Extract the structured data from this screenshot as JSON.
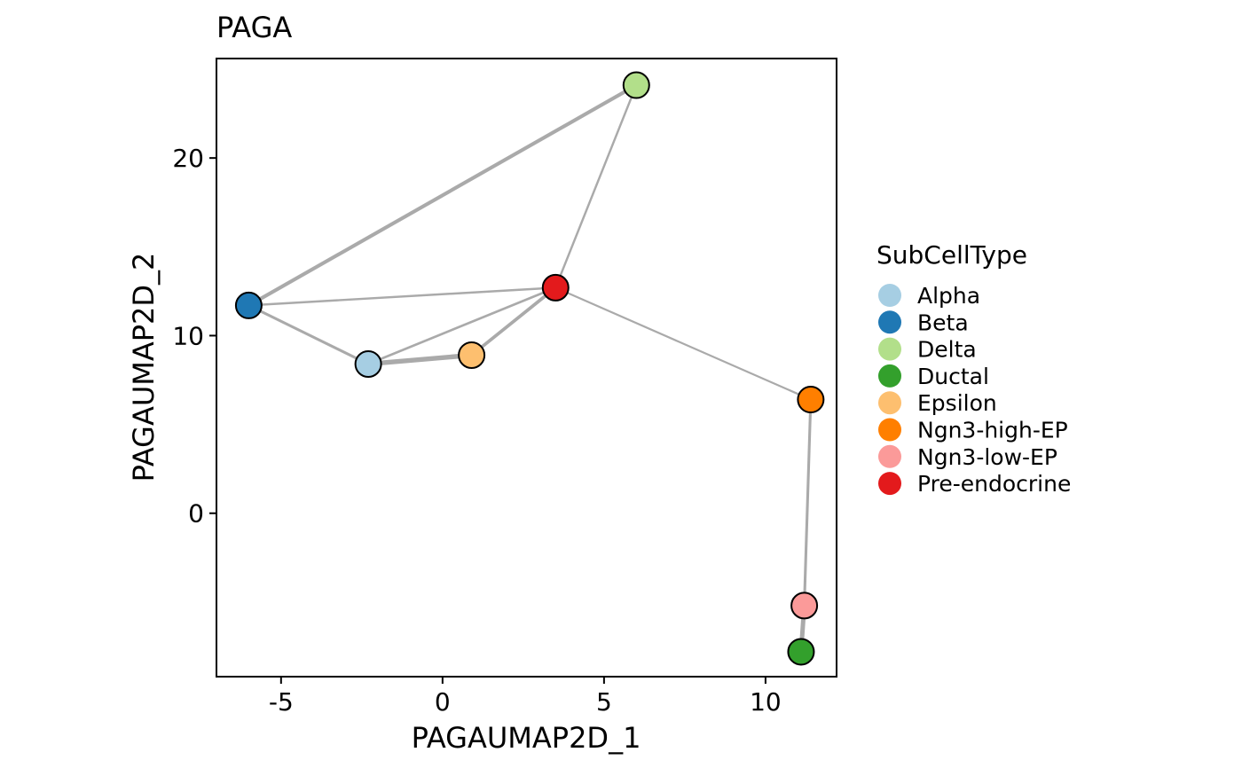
{
  "chart_data": {
    "type": "scatter",
    "title": "PAGA",
    "xlabel": "PAGAUMAP2D_1",
    "ylabel": "PAGAUMAP2D_2",
    "xlim": [
      -7.0,
      12.2
    ],
    "ylim": [
      -9.2,
      25.6
    ],
    "xticks": [
      -5,
      0,
      5,
      10
    ],
    "yticks": [
      0,
      10,
      20
    ],
    "xtick_labels": [
      "-5",
      "0",
      "5",
      "10"
    ],
    "ytick_labels": [
      "0",
      "10",
      "20"
    ],
    "legend": {
      "title": "SubCellType",
      "placement": "right"
    },
    "nodes": [
      {
        "name": "Alpha",
        "x": -2.3,
        "y": 8.4,
        "color": "#a6cee3"
      },
      {
        "name": "Beta",
        "x": -6.0,
        "y": 11.7,
        "color": "#1f78b4"
      },
      {
        "name": "Delta",
        "x": 6.0,
        "y": 24.1,
        "color": "#b2df8a"
      },
      {
        "name": "Ductal",
        "x": 11.1,
        "y": -7.8,
        "color": "#33a02c"
      },
      {
        "name": "Epsilon",
        "x": 0.9,
        "y": 8.9,
        "color": "#fdbf6f"
      },
      {
        "name": "Ngn3-high-EP",
        "x": 11.4,
        "y": 6.4,
        "color": "#ff7f00"
      },
      {
        "name": "Ngn3-low-EP",
        "x": 11.2,
        "y": -5.2,
        "color": "#fb9a99"
      },
      {
        "name": "Pre-endocrine",
        "x": 3.5,
        "y": 12.7,
        "color": "#e31a1c"
      }
    ],
    "edges": [
      {
        "source": "Beta",
        "target": "Delta",
        "weight": 0.7
      },
      {
        "source": "Beta",
        "target": "Pre-endocrine",
        "weight": 0.3
      },
      {
        "source": "Beta",
        "target": "Alpha",
        "weight": 0.45
      },
      {
        "source": "Alpha",
        "target": "Epsilon",
        "weight": 1.0
      },
      {
        "source": "Alpha",
        "target": "Pre-endocrine",
        "weight": 0.35
      },
      {
        "source": "Epsilon",
        "target": "Pre-endocrine",
        "weight": 0.6
      },
      {
        "source": "Delta",
        "target": "Pre-endocrine",
        "weight": 0.3
      },
      {
        "source": "Pre-endocrine",
        "target": "Ngn3-high-EP",
        "weight": 0.25
      },
      {
        "source": "Ngn3-high-EP",
        "target": "Ngn3-low-EP",
        "weight": 0.45
      },
      {
        "source": "Ngn3-low-EP",
        "target": "Ductal",
        "weight": 0.9
      }
    ],
    "edge_color": "#aaaaaa",
    "node_stroke_color": "#000000"
  }
}
